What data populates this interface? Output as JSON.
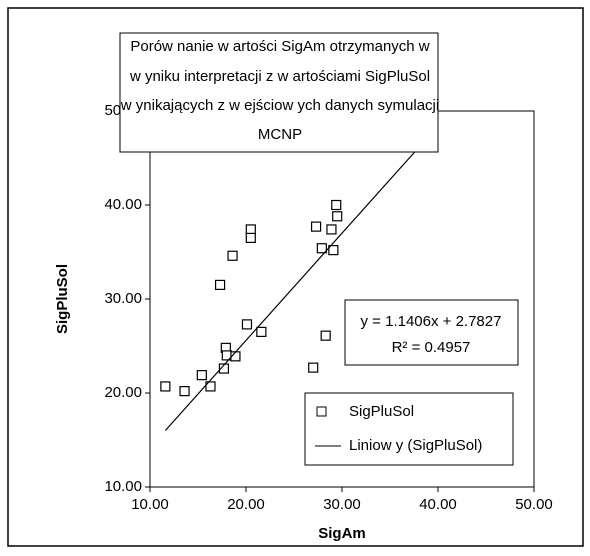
{
  "chart_data": {
    "type": "scatter",
    "title": [
      "Porów nanie w artości SigAm otrzymanych w",
      "w yniku interpretacji z w artościami SigPluSol",
      "w ynikających z w ejściow ych danych symulacji",
      "MCNP"
    ],
    "x_label": "SigAm",
    "y_label": "SigPluSol",
    "xlim": [
      10,
      50
    ],
    "ylim": [
      10,
      50
    ],
    "xticks": [
      {
        "value": 10,
        "label": "10.00"
      },
      {
        "value": 20,
        "label": "20.00"
      },
      {
        "value": 30,
        "label": "30.00"
      },
      {
        "value": 40,
        "label": "40.00"
      },
      {
        "value": 50,
        "label": "50.00"
      }
    ],
    "yticks": [
      {
        "value": 10,
        "label": "10.00"
      },
      {
        "value": 20,
        "label": "20.00"
      },
      {
        "value": 30,
        "label": "30.00"
      },
      {
        "value": 40,
        "label": "40.00"
      },
      {
        "value": 50,
        "label": "50.00"
      }
    ],
    "series": [
      {
        "name": "SigPluSol",
        "color": "#000000",
        "x": [
          11.6,
          13.6,
          15.4,
          16.3,
          17.7,
          17.9,
          18.0,
          18.9,
          17.3,
          18.6,
          20.1,
          20.5,
          20.5,
          21.6,
          27.0,
          27.3,
          27.9,
          28.3,
          28.9,
          29.1,
          29.4,
          29.5
        ],
        "values": [
          20.7,
          20.2,
          21.9,
          20.7,
          22.6,
          24.8,
          24.0,
          23.9,
          31.5,
          34.6,
          27.3,
          37.4,
          36.5,
          26.5,
          22.7,
          37.7,
          35.4,
          26.1,
          37.4,
          35.2,
          40.0,
          38.8
        ]
      }
    ],
    "trendline": {
      "name": "Liniow y (SigPluSol)",
      "equation": "y = 1.1406x + 2.7827",
      "r_squared": "R² = 0.4957",
      "slope": 1.1406,
      "intercept": 2.7827,
      "color": "#000000"
    },
    "legend": "lower right"
  }
}
